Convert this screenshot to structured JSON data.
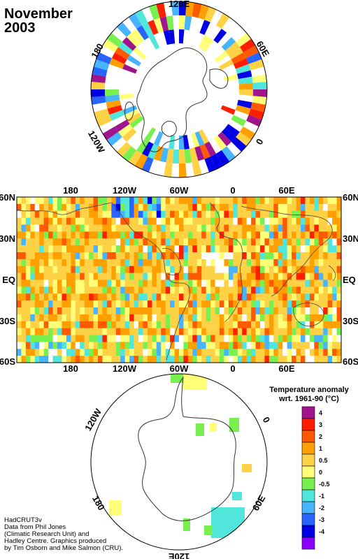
{
  "title": {
    "line1": "November",
    "line2": "2003"
  },
  "north_polar": {
    "labels": [
      "120E",
      "60E",
      "0",
      "120W",
      "180"
    ]
  },
  "world_map": {
    "top_labels": [
      "180",
      "120W",
      "60W",
      "0",
      "60E"
    ],
    "bottom_labels": [
      "180",
      "120W",
      "60W",
      "0",
      "60E"
    ],
    "lat_labels": [
      "60N",
      "30N",
      "EQ",
      "30S",
      "60S"
    ]
  },
  "south_polar": {
    "labels": [
      "120W",
      "0",
      "180",
      "60E",
      "120E"
    ]
  },
  "legend": {
    "title_line1": "Temperature anomaly",
    "title_line2": "wrt. 1961-90  (°C)",
    "bins": [
      {
        "label": "4",
        "color": "#a0148c"
      },
      {
        "label": "3",
        "color": "#ff1e00"
      },
      {
        "label": "2",
        "color": "#ff5a00"
      },
      {
        "label": "1",
        "color": "#ffa000"
      },
      {
        "label": "0.5",
        "color": "#ffd246"
      },
      {
        "label": "0",
        "color": "#ffff78"
      },
      {
        "label": "-0.5",
        "color": "#78f050"
      },
      {
        "label": "-1",
        "color": "#50e6dc"
      },
      {
        "label": "-2",
        "color": "#46b4ff"
      },
      {
        "label": "-3",
        "color": "#2864ff"
      },
      {
        "label": "-4",
        "color": "#0000e6"
      },
      {
        "label": "",
        "color": "#8c00ff"
      }
    ]
  },
  "credits": {
    "line1": "HadCRUT3v",
    "line2": "Data from Phil Jones",
    "line3": "(Climatic Research Unit) and",
    "line4": "Hadley Centre.  Graphics produced",
    "line5": "by Tim Osborn and Mike Salmon (CRU)."
  }
}
